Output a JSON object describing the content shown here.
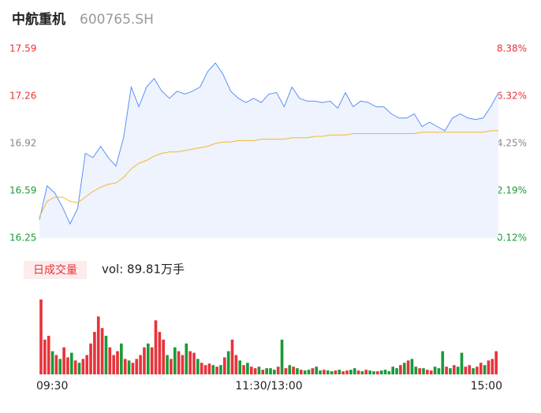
{
  "header": {
    "title": "中航重机",
    "code": "600765.SH"
  },
  "chart_data": [
    {
      "type": "line",
      "x": [
        0,
        4,
        8,
        12,
        16,
        20,
        24,
        28,
        32,
        36,
        40,
        44,
        48,
        52,
        56,
        60,
        64,
        68,
        72,
        76,
        80,
        84,
        88,
        92,
        96,
        100,
        104,
        108,
        112,
        116,
        120,
        124,
        128,
        132,
        136,
        140,
        144,
        148,
        152,
        156,
        160,
        164,
        168,
        172,
        176,
        180,
        184,
        188,
        192,
        196,
        200,
        204,
        208,
        212,
        216,
        220,
        224,
        228,
        232,
        236,
        240
      ],
      "series": [
        {
          "color": "#5b8ff9",
          "fill": "#eef3fd",
          "values": [
            16.38,
            16.62,
            16.57,
            16.47,
            16.35,
            16.46,
            16.85,
            16.82,
            16.9,
            16.82,
            16.76,
            16.96,
            17.32,
            17.18,
            17.32,
            17.38,
            17.29,
            17.24,
            17.29,
            17.27,
            17.29,
            17.32,
            17.43,
            17.49,
            17.41,
            17.29,
            17.24,
            17.21,
            17.24,
            17.21,
            17.27,
            17.28,
            17.18,
            17.32,
            17.24,
            17.22,
            17.22,
            17.21,
            17.22,
            17.17,
            17.28,
            17.18,
            17.22,
            17.21,
            17.18,
            17.18,
            17.13,
            17.1,
            17.1,
            17.13,
            17.04,
            17.07,
            17.04,
            17.01,
            17.1,
            17.13,
            17.1,
            17.09,
            17.1,
            17.18,
            17.28
          ]
        },
        {
          "color": "#f5b731",
          "values": [
            16.4,
            16.51,
            16.54,
            16.54,
            16.51,
            16.5,
            16.54,
            16.58,
            16.61,
            16.63,
            16.64,
            16.68,
            16.74,
            16.78,
            16.8,
            16.83,
            16.85,
            16.86,
            16.86,
            16.87,
            16.88,
            16.89,
            16.9,
            16.92,
            16.93,
            16.93,
            16.94,
            16.94,
            16.94,
            16.95,
            16.95,
            16.95,
            16.95,
            16.96,
            16.96,
            16.96,
            16.97,
            16.97,
            16.98,
            16.98,
            16.98,
            16.99,
            16.99,
            16.99,
            16.99,
            16.99,
            16.99,
            16.99,
            16.99,
            16.99,
            17.0,
            17.0,
            17.0,
            17.0,
            17.0,
            17.0,
            17.0,
            17.0,
            17.0,
            17.01,
            17.01
          ]
        }
      ],
      "xlim": [
        0,
        240
      ],
      "ylim": [
        16.25,
        17.59
      ],
      "yticks": [
        16.25,
        {
          "value": 16.585,
          "label": "16.59"
        },
        16.92,
        {
          "value": 17.255,
          "label": "17.26"
        },
        17.59
      ],
      "y2lim": [
        0.12,
        8.38
      ],
      "y2ticks": [
        {
          "value": 0.12,
          "label": "0.12%"
        },
        {
          "value": 2.185,
          "label": "2.19%"
        },
        {
          "value": 4.25,
          "label": "4.25%"
        },
        {
          "value": 6.315,
          "label": "6.32%"
        },
        {
          "value": 8.38,
          "label": "8.38%"
        }
      ],
      "tick_colors": [
        "#1a9a3a",
        "#1a9a3a",
        "#888888",
        "#e8333a",
        "#e8333a"
      ],
      "grid": false
    },
    {
      "type": "bar",
      "button": "日成交量",
      "subtitle": "vol: 89.81万手",
      "x": [
        0,
        2,
        4,
        6,
        8,
        10,
        12,
        14,
        16,
        18,
        20,
        22,
        24,
        26,
        28,
        30,
        32,
        34,
        36,
        38,
        40,
        42,
        44,
        46,
        48,
        50,
        52,
        54,
        56,
        58,
        60,
        62,
        64,
        66,
        68,
        70,
        72,
        74,
        76,
        78,
        80,
        82,
        84,
        86,
        88,
        90,
        92,
        94,
        96,
        98,
        100,
        102,
        104,
        106,
        108,
        110,
        112,
        114,
        116,
        118,
        120,
        122,
        124,
        126,
        128,
        130,
        132,
        134,
        136,
        138,
        140,
        142,
        144,
        146,
        148,
        150,
        152,
        154,
        156,
        158,
        160,
        162,
        164,
        166,
        168,
        170,
        172,
        174,
        176,
        178,
        180,
        182,
        184,
        186,
        188,
        190,
        192,
        194,
        196,
        198,
        200,
        202,
        204,
        206,
        208,
        210,
        212,
        214,
        216,
        218,
        220,
        222,
        224,
        226,
        228,
        230,
        232,
        234,
        236,
        238
      ],
      "values": [
        19400,
        9000,
        10000,
        6000,
        5000,
        4000,
        7000,
        4400,
        5600,
        3600,
        3000,
        4000,
        5000,
        8000,
        11000,
        15000,
        12000,
        10000,
        7000,
        5000,
        6000,
        8000,
        4000,
        3600,
        3000,
        4000,
        5000,
        7000,
        8000,
        7000,
        14000,
        11000,
        9000,
        5000,
        4000,
        7000,
        6000,
        5000,
        8000,
        6000,
        5600,
        4000,
        3000,
        2400,
        2800,
        2400,
        2000,
        2400,
        4400,
        6000,
        9000,
        5000,
        3600,
        2400,
        3000,
        2000,
        1600,
        2000,
        1200,
        1600,
        1600,
        1200,
        2000,
        9000,
        1600,
        2400,
        2000,
        1600,
        1200,
        1000,
        1200,
        1600,
        2000,
        1000,
        1200,
        1000,
        800,
        1000,
        1200,
        800,
        1000,
        1200,
        1600,
        1000,
        800,
        1200,
        1000,
        800,
        800,
        1000,
        1200,
        800,
        2000,
        1600,
        2400,
        3000,
        3600,
        4000,
        2000,
        1600,
        1600,
        1200,
        1000,
        2000,
        1600,
        6000,
        2000,
        1600,
        2400,
        2000,
        5600,
        2000,
        2400,
        1600,
        2000,
        3000,
        2400,
        3600,
        4000,
        6000
      ],
      "direction": [
        1,
        1,
        1,
        -1,
        1,
        -1,
        1,
        1,
        -1,
        1,
        -1,
        1,
        1,
        1,
        1,
        1,
        1,
        -1,
        1,
        1,
        1,
        -1,
        1,
        -1,
        1,
        1,
        1,
        1,
        -1,
        1,
        1,
        1,
        1,
        -1,
        1,
        -1,
        1,
        1,
        -1,
        1,
        1,
        -1,
        1,
        1,
        1,
        -1,
        1,
        -1,
        1,
        -1,
        1,
        1,
        -1,
        1,
        -1,
        1,
        1,
        -1,
        1,
        -1,
        -1,
        -1,
        1,
        -1,
        1,
        -1,
        1,
        -1,
        1,
        -1,
        -1,
        1,
        -1,
        -1,
        1,
        -1,
        -1,
        1,
        -1,
        1,
        1,
        -1,
        -1,
        1,
        -1,
        1,
        -1,
        -1,
        1,
        -1,
        -1,
        -1,
        -1,
        -1,
        1,
        -1,
        1,
        -1,
        -1,
        1,
        -1,
        1,
        1,
        -1,
        -1,
        -1,
        1,
        -1,
        1,
        -1,
        -1,
        1,
        1,
        -1,
        1,
        1,
        -1,
        1,
        1,
        1
      ],
      "up_color": "#e8333a",
      "down_color": "#1a9a3a",
      "xlim": [
        0,
        240
      ],
      "ylim": [
        0,
        20000
      ],
      "xticks": [
        {
          "value": 0,
          "label": "09:30"
        },
        {
          "value": 120,
          "label": "11:30/13:00"
        },
        {
          "value": 240,
          "label": "15:00"
        }
      ]
    }
  ]
}
